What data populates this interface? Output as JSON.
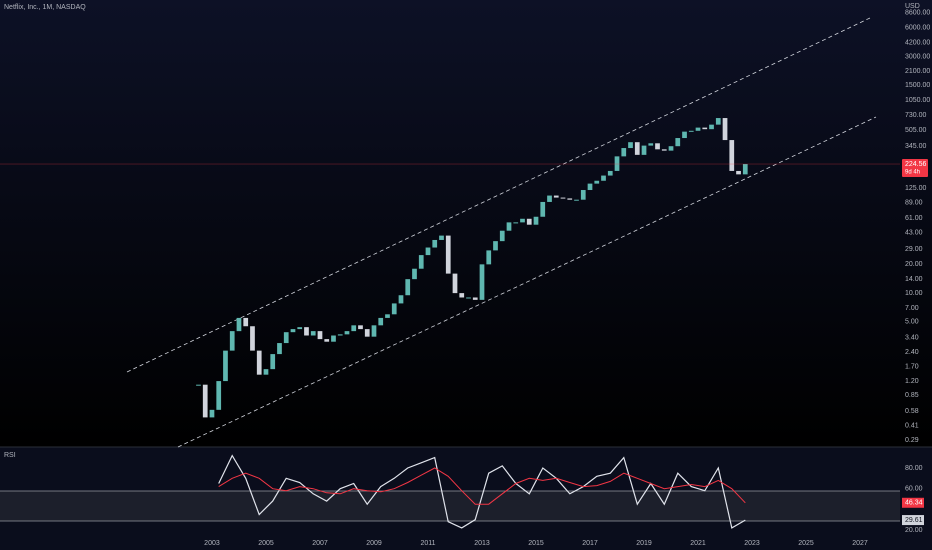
{
  "chart_data": [
    {
      "type": "candlestick",
      "title": "Netflix, Inc., 1M, NASDAQ",
      "currency": "USD",
      "countdown": "9d 4h",
      "log_scale": true,
      "up_color": "#5fb7b0",
      "down_color": "#d1d4dc",
      "x": [
        2002.5,
        2002.75,
        2003,
        2003.25,
        2003.5,
        2003.75,
        2004,
        2004.25,
        2004.5,
        2004.75,
        2005,
        2005.25,
        2005.5,
        2005.75,
        2006,
        2006.25,
        2006.5,
        2006.75,
        2007,
        2007.25,
        2007.5,
        2007.75,
        2008,
        2008.25,
        2008.5,
        2008.75,
        2009,
        2009.25,
        2009.5,
        2009.75,
        2010,
        2010.25,
        2010.5,
        2010.75,
        2011,
        2011.25,
        2011.5,
        2011.75,
        2012,
        2012.25,
        2012.5,
        2012.75,
        2013,
        2013.25,
        2013.5,
        2013.75,
        2014,
        2014.25,
        2014.5,
        2014.75,
        2015,
        2015.25,
        2015.5,
        2015.75,
        2016,
        2016.25,
        2016.5,
        2016.75,
        2017,
        2017.25,
        2017.5,
        2017.75,
        2018,
        2018.25,
        2018.5,
        2018.75,
        2019,
        2019.25,
        2019.5,
        2019.75,
        2020,
        2020.25,
        2020.5,
        2020.75,
        2021,
        2021.25,
        2021.5,
        2021.75,
        2022,
        2022.25,
        2022.5,
        2022.75
      ],
      "values": [
        1.1,
        0.5,
        0.6,
        1.2,
        2.5,
        4.0,
        5.5,
        4.5,
        2.5,
        1.4,
        1.6,
        2.3,
        3.0,
        3.9,
        4.2,
        4.4,
        3.6,
        4.0,
        3.3,
        3.1,
        3.6,
        3.7,
        4.0,
        4.6,
        4.2,
        3.5,
        4.6,
        5.5,
        6.0,
        7.8,
        9.5,
        14,
        18,
        25,
        30,
        36,
        40,
        16,
        10,
        9,
        9,
        8.5,
        20,
        28,
        35,
        45,
        55,
        55,
        60,
        52,
        63,
        90,
        105,
        100,
        98,
        95,
        95,
        120,
        140,
        150,
        170,
        190,
        270,
        330,
        380,
        280,
        350,
        370,
        320,
        310,
        345,
        420,
        490,
        500,
        540,
        520,
        580,
        680,
        400,
        190,
        175,
        224.56
      ],
      "xlim": [
        1995.15,
        2028.48
      ],
      "xticks": [
        2003,
        2005,
        2007,
        2009,
        2011,
        2013,
        2015,
        2017,
        2019,
        2021,
        2023,
        2025,
        2027
      ],
      "ylim": [
        0.245,
        11700
      ],
      "yticks": [
        {
          "value": 8600,
          "label": "8600.00"
        },
        {
          "value": 6000,
          "label": "6000.00"
        },
        {
          "value": 4200,
          "label": "4200.00"
        },
        {
          "value": 3000,
          "label": "3000.00"
        },
        {
          "value": 2100,
          "label": "2100.00"
        },
        {
          "value": 1500,
          "label": "1500.00"
        },
        {
          "value": 1050,
          "label": "1050.00"
        },
        {
          "value": 730,
          "label": "730.00"
        },
        {
          "value": 505,
          "label": "505.00"
        },
        {
          "value": 345,
          "label": "345.00"
        },
        {
          "value": 125,
          "label": "125.00"
        },
        {
          "value": 89,
          "label": "89.00"
        },
        {
          "value": 61,
          "label": "61.00"
        },
        {
          "value": 43,
          "label": "43.00"
        },
        {
          "value": 29,
          "label": "29.00"
        },
        {
          "value": 20,
          "label": "20.00"
        },
        {
          "value": 14,
          "label": "14.00"
        },
        {
          "value": 10,
          "label": "10.00"
        },
        {
          "value": 7,
          "label": "7.00"
        },
        {
          "value": 5,
          "label": "5.00"
        },
        {
          "value": 3.4,
          "label": "3.40"
        },
        {
          "value": 2.4,
          "label": "2.40"
        },
        {
          "value": 1.7,
          "label": "1.70"
        },
        {
          "value": 1.2,
          "label": "1.20"
        },
        {
          "value": 0.85,
          "label": "0.85"
        },
        {
          "value": 0.58,
          "label": "0.58"
        },
        {
          "value": 0.41,
          "label": "0.41"
        },
        {
          "value": 0.29,
          "label": "0.29"
        }
      ]
    },
    {
      "type": "line",
      "title": "RSI",
      "x": [
        2003.25,
        2003.75,
        2004.25,
        2004.75,
        2005.25,
        2005.75,
        2006.25,
        2006.75,
        2007.25,
        2007.75,
        2008.25,
        2008.75,
        2009.25,
        2009.75,
        2010.25,
        2010.75,
        2011.25,
        2011.75,
        2012.25,
        2012.75,
        2013.25,
        2013.75,
        2014.25,
        2014.75,
        2015.25,
        2015.75,
        2016.25,
        2016.75,
        2017.25,
        2017.75,
        2018.25,
        2018.75,
        2019.25,
        2019.75,
        2020.25,
        2020.75,
        2021.25,
        2021.75,
        2022.25,
        2022.75
      ],
      "series": [
        {
          "color": "#e0e3eb",
          "values": [
            65,
            92,
            70,
            35,
            48,
            70,
            66,
            55,
            48,
            60,
            65,
            45,
            62,
            70,
            80,
            85,
            90,
            28,
            22,
            30,
            75,
            82,
            65,
            55,
            80,
            70,
            55,
            62,
            72,
            75,
            90,
            45,
            65,
            45,
            75,
            62,
            58,
            80,
            22,
            29.61
          ]
        },
        {
          "color": "#f23645",
          "values": [
            62,
            70,
            75,
            70,
            60,
            58,
            62,
            60,
            56,
            55,
            60,
            58,
            57,
            60,
            66,
            73,
            80,
            72,
            58,
            45,
            45,
            55,
            65,
            70,
            68,
            70,
            66,
            62,
            63,
            67,
            75,
            70,
            65,
            60,
            62,
            64,
            62,
            68,
            60,
            46.34
          ]
        }
      ],
      "xlim": [
        1995.15,
        2028.48
      ],
      "ylim": [
        0.65,
        100.3
      ],
      "yticks": [
        {
          "value": 80,
          "label": "80.00"
        },
        {
          "value": 60,
          "label": "60.00"
        },
        {
          "value": 20,
          "label": "20.00"
        }
      ]
    }
  ]
}
